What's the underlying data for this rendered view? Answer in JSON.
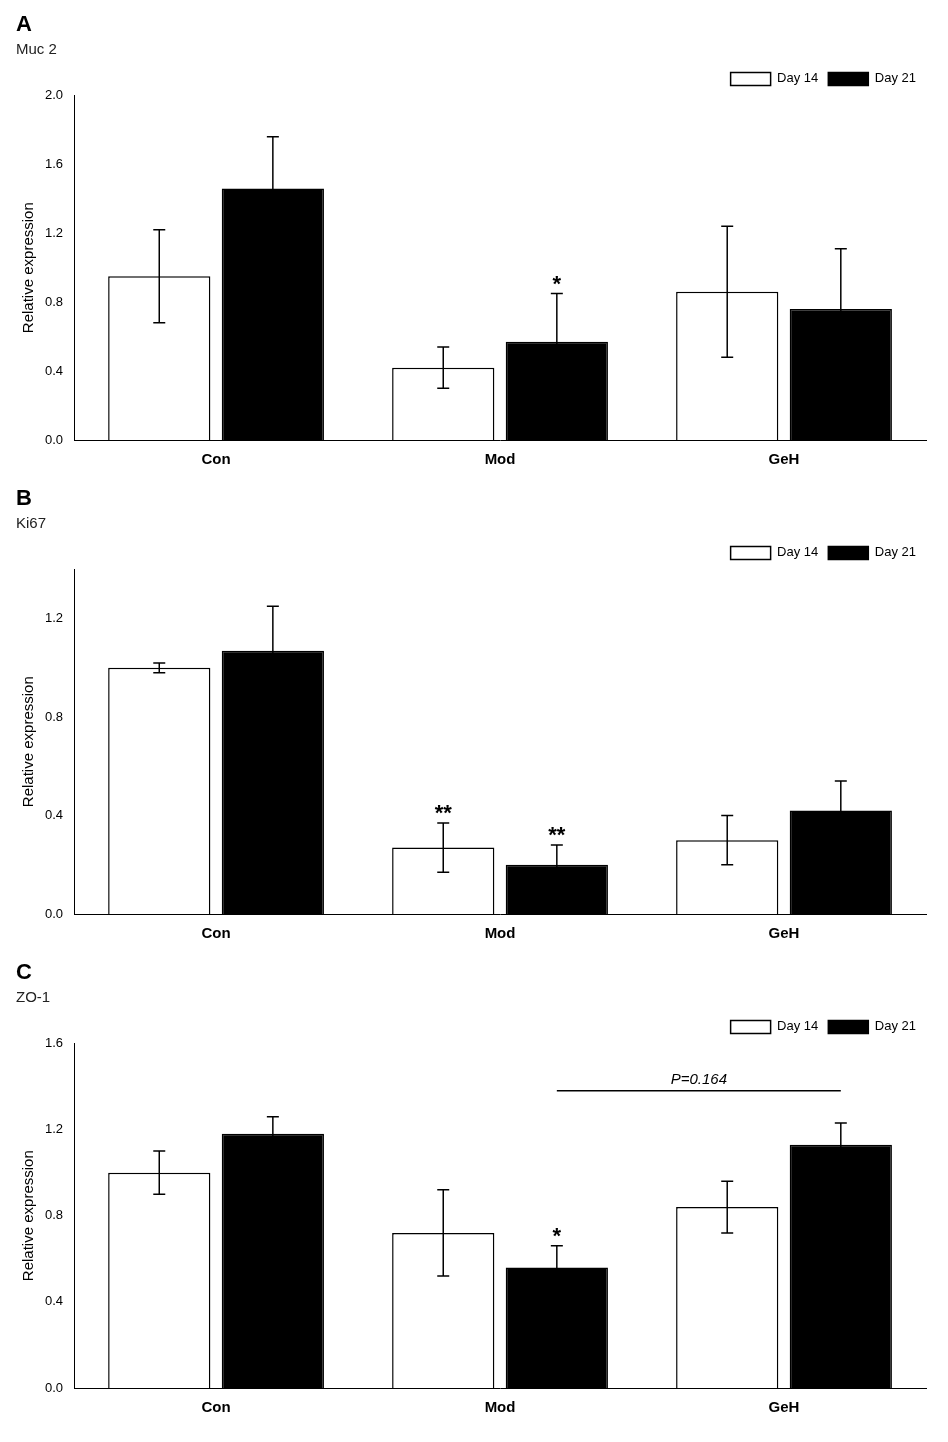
{
  "chart_data": [
    {
      "type": "bar",
      "title": "Muc 2",
      "subtitle": "A",
      "ylabel": "Relative expression",
      "categories": [
        "Con",
        "Mod",
        "GeH"
      ],
      "series": [
        {
          "name": "Day 14",
          "color": "#ffffff",
          "values": [
            0.95,
            0.42,
            0.86
          ],
          "errors": [
            0.27,
            0.12,
            0.38
          ]
        },
        {
          "name": "Day 21",
          "color": "#000000",
          "values": [
            1.46,
            0.57,
            0.76
          ],
          "errors": [
            0.3,
            0.28,
            0.35
          ]
        }
      ],
      "ylim": [
        0,
        2.0
      ],
      "yticks": [
        {
          "value": 0,
          "label": "0.0"
        },
        0.4,
        0.8,
        1.2,
        1.6,
        {
          "value": 2,
          "label": "2.0"
        }
      ],
      "grid": false,
      "legend": "upper right",
      "annotations": [
        {
          "text": "*",
          "category": "Mod",
          "series": "Day 21"
        }
      ]
    },
    {
      "type": "bar",
      "title": "Ki67",
      "subtitle": "B",
      "ylabel": "Relative expression",
      "categories": [
        "Con",
        "Mod",
        "GeH"
      ],
      "series": [
        {
          "name": "Day 14",
          "color": "#ffffff",
          "values": [
            1.0,
            0.27,
            0.3
          ],
          "errors": [
            0.02,
            0.1,
            0.1
          ]
        },
        {
          "name": "Day 21",
          "color": "#000000",
          "values": [
            1.07,
            0.2,
            0.42
          ],
          "errors": [
            0.18,
            0.08,
            0.12
          ]
        }
      ],
      "ylim": [
        0,
        1.4
      ],
      "yticks": [
        {
          "value": 0,
          "label": "0.0"
        },
        0.4,
        0.8,
        1.2
      ],
      "grid": false,
      "legend": "upper right",
      "annotations": [
        {
          "text": "**",
          "category": "Mod",
          "series": "Day 14"
        },
        {
          "text": "**",
          "category": "Mod",
          "series": "Day 21"
        }
      ]
    },
    {
      "type": "bar",
      "title": "ZO-1",
      "subtitle": "C",
      "ylabel": "Relative expression",
      "categories": [
        "Con",
        "Mod",
        "GeH"
      ],
      "series": [
        {
          "name": "Day 14",
          "color": "#ffffff",
          "values": [
            1.0,
            0.72,
            0.84
          ],
          "errors": [
            0.1,
            0.2,
            0.12
          ]
        },
        {
          "name": "Day 21",
          "color": "#000000",
          "values": [
            1.18,
            0.56,
            1.13
          ],
          "errors": [
            0.08,
            0.1,
            0.1
          ]
        }
      ],
      "ylim": [
        0,
        1.6
      ],
      "yticks": [
        {
          "value": 0,
          "label": "0.0"
        },
        0.4,
        0.8,
        1.2,
        1.6
      ],
      "grid": false,
      "legend": "upper right",
      "annotations": [
        {
          "text": "*",
          "category": "Mod",
          "series": "Day 21"
        },
        {
          "text": "P=0.164",
          "y": 1.38,
          "from": "Mod",
          "to": "GeH",
          "series": "Day 21"
        }
      ]
    }
  ]
}
